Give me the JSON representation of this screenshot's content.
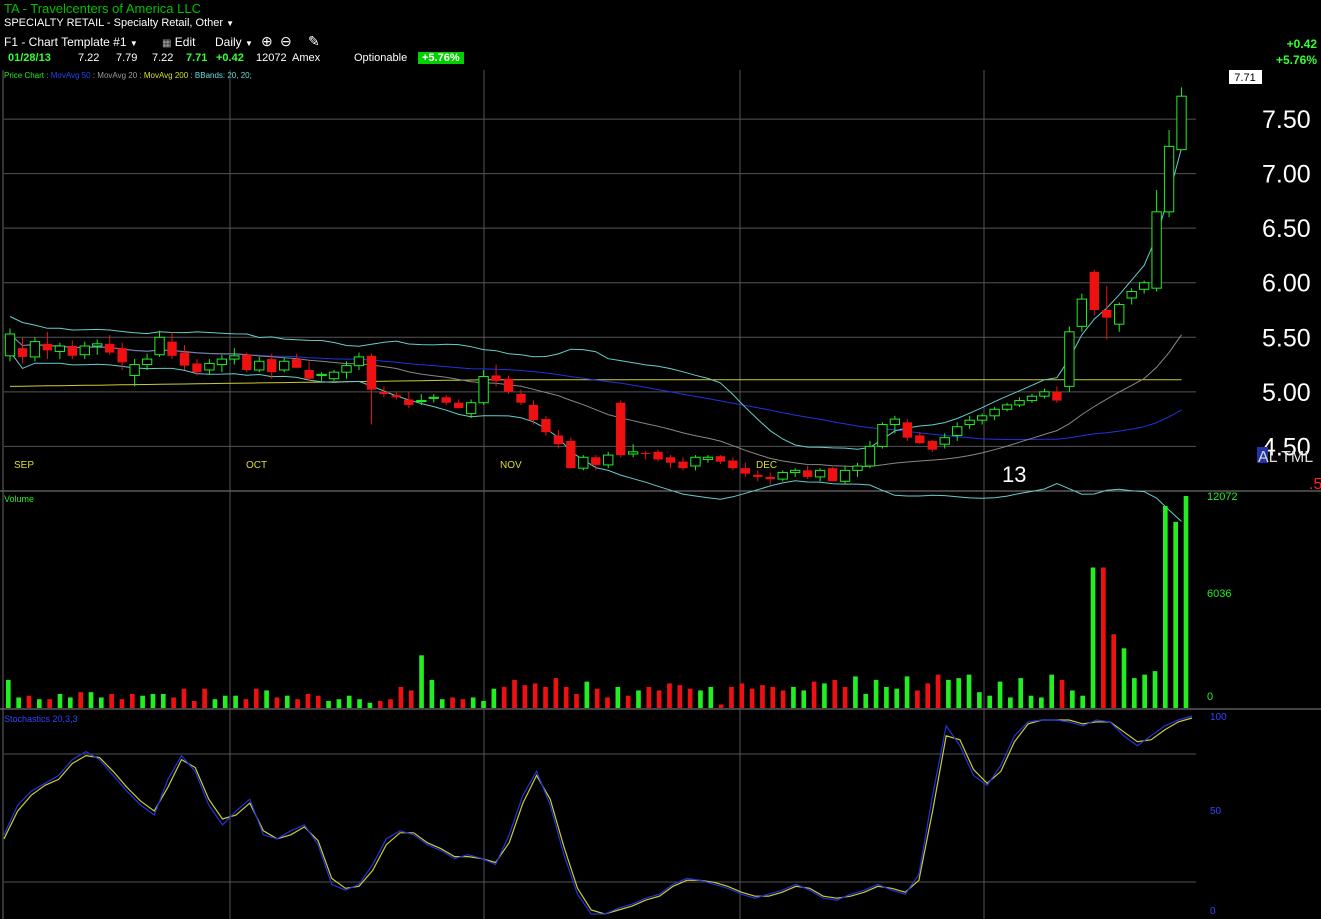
{
  "header": {
    "title": "TA - Travelcenters of America LLC",
    "sector": "SPECIALTY RETAIL - Specialty Retail, Other",
    "template": "F1 - Chart Template #1",
    "edit": "Edit",
    "interval": "Daily",
    "change_abs": "+0.42",
    "change_pct": "+5.76%"
  },
  "quote": {
    "date": "01/28/13",
    "open": "7.22",
    "high": "7.79",
    "low": "7.22",
    "close": "7.71",
    "change": "+0.42",
    "volume": "12072",
    "exchange": "Amex",
    "optionable": "Optionable",
    "change_pct": "+5.76%"
  },
  "legend": {
    "price": "Price Chart :",
    "ma50": "MovAvg 50",
    "ma20": "MovAvg 20",
    "ma200": "MovAvg 200",
    "bbands": "BBands: 20, 20;"
  },
  "colors": {
    "up": "#22ee22",
    "down": "#ee1111",
    "ma50": "#2233dd",
    "ma20": "#888888",
    "ma200": "#cccc33",
    "bband": "#66cccc",
    "grid": "#555555",
    "stochK": "#2233dd",
    "stochD": "#cccc33"
  },
  "chart_data": {
    "type": "line",
    "price_axis": {
      "ticks": [
        "7.50",
        "7.00",
        "6.50",
        "6.00",
        "5.50",
        "5.00",
        "4.50"
      ],
      "ylim": [
        4.1,
        7.95
      ]
    },
    "current_price_label": "7.71",
    "months": [
      "SEP",
      "OCT",
      "NOV",
      "DEC"
    ],
    "stray_text": {
      "year": "13",
      "al_tml": "AL TML",
      "red_frag": ".5"
    },
    "candles": [
      [
        5.33,
        5.58,
        5.28,
        5.53
      ],
      [
        5.4,
        5.5,
        5.26,
        5.32
      ],
      [
        5.32,
        5.5,
        5.28,
        5.46
      ],
      [
        5.44,
        5.55,
        5.3,
        5.38
      ],
      [
        5.37,
        5.45,
        5.3,
        5.42
      ],
      [
        5.42,
        5.47,
        5.3,
        5.33
      ],
      [
        5.34,
        5.46,
        5.3,
        5.42
      ],
      [
        5.42,
        5.48,
        5.34,
        5.44
      ],
      [
        5.44,
        5.52,
        5.34,
        5.36
      ],
      [
        5.4,
        5.45,
        5.2,
        5.27
      ],
      [
        5.15,
        5.3,
        5.05,
        5.25
      ],
      [
        5.25,
        5.35,
        5.2,
        5.3
      ],
      [
        5.34,
        5.56,
        5.32,
        5.5
      ],
      [
        5.46,
        5.55,
        5.3,
        5.33
      ],
      [
        5.36,
        5.43,
        5.2,
        5.24
      ],
      [
        5.26,
        5.3,
        5.15,
        5.18
      ],
      [
        5.2,
        5.3,
        5.16,
        5.26
      ],
      [
        5.25,
        5.34,
        5.18,
        5.3
      ],
      [
        5.3,
        5.4,
        5.25,
        5.33
      ],
      [
        5.34,
        5.36,
        5.18,
        5.2
      ],
      [
        5.2,
        5.32,
        5.18,
        5.28
      ],
      [
        5.3,
        5.35,
        5.12,
        5.18
      ],
      [
        5.2,
        5.31,
        5.18,
        5.28
      ],
      [
        5.3,
        5.35,
        5.24,
        5.22
      ],
      [
        5.2,
        5.28,
        5.1,
        5.12
      ],
      [
        5.15,
        5.18,
        5.1,
        5.16
      ],
      [
        5.12,
        5.2,
        5.1,
        5.18
      ],
      [
        5.18,
        5.28,
        5.12,
        5.24
      ],
      [
        5.24,
        5.36,
        5.2,
        5.32
      ],
      [
        5.33,
        5.35,
        4.7,
        5.02
      ],
      [
        5.0,
        5.05,
        4.95,
        4.98
      ],
      [
        4.97,
        5.0,
        4.93,
        4.95
      ],
      [
        4.93,
        5.0,
        4.85,
        4.88
      ],
      [
        4.92,
        4.98,
        4.88,
        4.92
      ],
      [
        4.94,
        4.98,
        4.9,
        4.95
      ],
      [
        4.95,
        4.97,
        4.88,
        4.9
      ],
      [
        4.9,
        4.93,
        4.85,
        4.85
      ],
      [
        4.8,
        4.93,
        4.76,
        4.9
      ],
      [
        4.9,
        5.2,
        4.88,
        5.14
      ],
      [
        5.15,
        5.25,
        5.05,
        5.1
      ],
      [
        5.12,
        5.15,
        4.98,
        5.0
      ],
      [
        4.98,
        5.02,
        4.88,
        4.9
      ],
      [
        4.88,
        4.92,
        4.7,
        4.74
      ],
      [
        4.75,
        4.78,
        4.6,
        4.63
      ],
      [
        4.6,
        4.65,
        4.48,
        4.52
      ],
      [
        4.55,
        4.58,
        4.3,
        4.3
      ],
      [
        4.3,
        4.42,
        4.28,
        4.4
      ],
      [
        4.4,
        4.42,
        4.28,
        4.33
      ],
      [
        4.33,
        4.45,
        4.3,
        4.42
      ],
      [
        4.9,
        4.92,
        4.4,
        4.42
      ],
      [
        4.43,
        4.52,
        4.4,
        4.45
      ],
      [
        4.44,
        4.46,
        4.38,
        4.43
      ],
      [
        4.45,
        4.47,
        4.36,
        4.38
      ],
      [
        4.4,
        4.42,
        4.3,
        4.35
      ],
      [
        4.36,
        4.4,
        4.28,
        4.3
      ],
      [
        4.32,
        4.42,
        4.28,
        4.4
      ],
      [
        4.38,
        4.42,
        4.35,
        4.4
      ],
      [
        4.41,
        4.42,
        4.34,
        4.36
      ],
      [
        4.37,
        4.4,
        4.28,
        4.3
      ],
      [
        4.3,
        4.35,
        4.22,
        4.25
      ],
      [
        4.24,
        4.28,
        4.18,
        4.22
      ],
      [
        4.22,
        4.26,
        4.15,
        4.2
      ],
      [
        4.2,
        4.28,
        4.18,
        4.26
      ],
      [
        4.26,
        4.3,
        4.22,
        4.28
      ],
      [
        4.28,
        4.32,
        4.2,
        4.22
      ],
      [
        4.22,
        4.3,
        4.18,
        4.28
      ],
      [
        4.3,
        4.31,
        4.2,
        4.18
      ],
      [
        4.18,
        4.32,
        4.15,
        4.28
      ],
      [
        4.28,
        4.35,
        4.22,
        4.32
      ],
      [
        4.32,
        4.55,
        4.3,
        4.5
      ],
      [
        4.5,
        4.72,
        4.48,
        4.7
      ],
      [
        4.7,
        4.78,
        4.62,
        4.75
      ],
      [
        4.72,
        4.75,
        4.55,
        4.58
      ],
      [
        4.6,
        4.63,
        4.52,
        4.53
      ],
      [
        4.55,
        4.56,
        4.45,
        4.47
      ],
      [
        4.52,
        4.62,
        4.48,
        4.58
      ],
      [
        4.6,
        4.72,
        4.55,
        4.68
      ],
      [
        4.7,
        4.78,
        4.66,
        4.74
      ],
      [
        4.74,
        4.8,
        4.7,
        4.78
      ],
      [
        4.78,
        4.86,
        4.74,
        4.84
      ],
      [
        4.84,
        4.9,
        4.82,
        4.88
      ],
      [
        4.88,
        4.95,
        4.86,
        4.92
      ],
      [
        4.92,
        4.98,
        4.9,
        4.96
      ],
      [
        4.96,
        5.03,
        4.94,
        5.0
      ],
      [
        5.0,
        5.05,
        4.9,
        4.92
      ],
      [
        5.05,
        5.6,
        5.0,
        5.55
      ],
      [
        5.6,
        5.9,
        5.55,
        5.85
      ],
      [
        6.1,
        6.12,
        5.7,
        5.75
      ],
      [
        5.75,
        5.97,
        5.48,
        5.68
      ],
      [
        5.62,
        5.82,
        5.55,
        5.8
      ],
      [
        5.86,
        5.95,
        5.8,
        5.92
      ],
      [
        5.94,
        6.02,
        5.9,
        6.0
      ],
      [
        5.95,
        6.85,
        5.92,
        6.65
      ],
      [
        6.65,
        7.4,
        6.6,
        7.25
      ],
      [
        7.22,
        7.79,
        7.22,
        7.71
      ]
    ],
    "volume": {
      "axis_labels": [
        "12072",
        "6036",
        "0"
      ],
      "label": "Volume",
      "values": [
        1600,
        600,
        700,
        500,
        500,
        800,
        600,
        900,
        900,
        600,
        800,
        500,
        800,
        700,
        800,
        800,
        600,
        1100,
        400,
        1100,
        500,
        700,
        700,
        500,
        1100,
        1000,
        600,
        700,
        500,
        800,
        700,
        400,
        500,
        700,
        500,
        300,
        400,
        500,
        1200,
        1000,
        3000,
        1600,
        500,
        600,
        500,
        600,
        400,
        1100,
        1200,
        1600,
        1300,
        1400,
        1200,
        1700,
        1200,
        800,
        1500,
        1100,
        600,
        1200,
        700,
        1000,
        1200,
        1000,
        1400,
        1300,
        1100,
        1000,
        1200,
        200,
        1200,
        1400,
        1100,
        1300,
        1200,
        1000,
        1200,
        1000,
        1500,
        1400,
        1600,
        1200,
        1800,
        800,
        1600,
        1200,
        1100,
        1800,
        1000,
        1400,
        1900,
        1600,
        1700,
        1900,
        900,
        700,
        1500,
        600,
        1700,
        700,
        600,
        1900,
        1600,
        1000,
        700,
        8000,
        8000,
        4200,
        3400,
        1700,
        1900,
        2100,
        11500,
        10600,
        12072
      ]
    },
    "stochastics": {
      "label": "Stochastics 20,3,3",
      "axis_labels": [
        "100",
        "50",
        "0"
      ],
      "k": [
        40,
        55,
        62,
        66,
        70,
        78,
        82,
        78,
        70,
        62,
        55,
        50,
        68,
        80,
        72,
        55,
        45,
        52,
        58,
        40,
        38,
        42,
        45,
        35,
        15,
        12,
        15,
        25,
        38,
        42,
        40,
        35,
        32,
        28,
        30,
        28,
        25,
        40,
        60,
        72,
        55,
        30,
        10,
        0,
        0,
        3,
        5,
        8,
        10,
        15,
        18,
        17,
        15,
        13,
        10,
        8,
        10,
        12,
        15,
        12,
        8,
        7,
        10,
        12,
        15,
        12,
        10,
        20,
        60,
        95,
        85,
        70,
        65,
        75,
        90,
        97,
        98,
        98,
        97,
        95,
        98,
        97,
        90,
        85,
        90,
        95,
        98,
        100
      ],
      "d": [
        38,
        52,
        60,
        65,
        68,
        76,
        80,
        79,
        72,
        64,
        57,
        52,
        64,
        78,
        74,
        58,
        48,
        50,
        56,
        42,
        38,
        40,
        44,
        37,
        18,
        13,
        14,
        22,
        35,
        41,
        41,
        36,
        33,
        29,
        29,
        28,
        26,
        36,
        56,
        70,
        58,
        34,
        13,
        2,
        0,
        2,
        4,
        7,
        9,
        14,
        17,
        17,
        16,
        14,
        11,
        9,
        9,
        11,
        14,
        13,
        9,
        8,
        9,
        11,
        14,
        13,
        11,
        17,
        52,
        90,
        88,
        73,
        66,
        72,
        87,
        96,
        98,
        98,
        98,
        96,
        97,
        97,
        92,
        87,
        88,
        93,
        97,
        99
      ]
    }
  }
}
